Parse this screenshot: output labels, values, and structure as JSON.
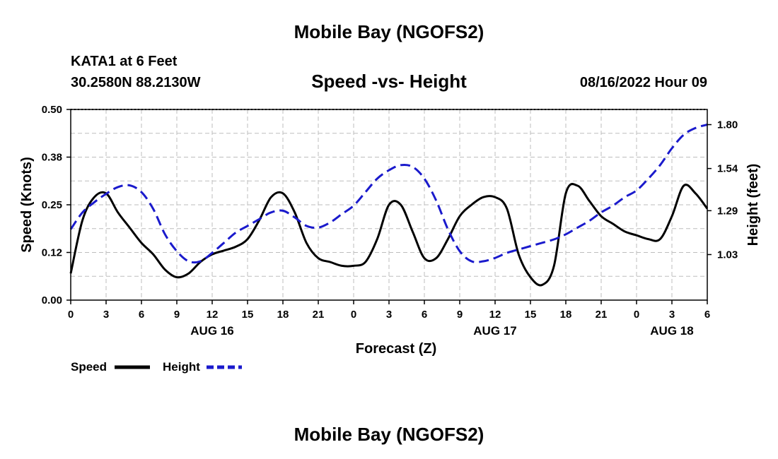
{
  "header": {
    "title": "Mobile Bay (NGOFS2)",
    "station": "KATA1 at 6 Feet",
    "coords": "30.2580N  88.2130W",
    "subtitle": "Speed -vs- Height",
    "datetime": "08/16/2022 Hour 09",
    "bottom_title": "Mobile Bay (NGOFS2)"
  },
  "chart_data": {
    "type": "line",
    "title": "Speed -vs- Height",
    "xlabel": "Forecast (Z)",
    "ylabel": "Speed (Knots)",
    "y2label": "Height (feet)",
    "x_hours_range": [
      0,
      54
    ],
    "x_tick_labels": [
      "0",
      "3",
      "6",
      "9",
      "12",
      "15",
      "18",
      "21",
      "0",
      "3",
      "6",
      "9",
      "12",
      "15",
      "18",
      "21",
      "0",
      "3",
      "6"
    ],
    "date_labels": [
      {
        "label": "AUG 16",
        "hour": 12
      },
      {
        "label": "AUG 17",
        "hour": 36
      },
      {
        "label": "AUG 18",
        "hour": 51
      }
    ],
    "ylim": [
      0,
      0.5
    ],
    "y_ticks": [
      "0.00",
      "0.12",
      "0.25",
      "0.38",
      "0.50"
    ],
    "y_tick_values": [
      0,
      0.125,
      0.25,
      0.375,
      0.5
    ],
    "y2lim": [
      0.76,
      1.89
    ],
    "y2_ticks": [
      "1.03",
      "1.29",
      "1.54",
      "1.80"
    ],
    "y2_tick_values": [
      1.03,
      1.29,
      1.54,
      1.8
    ],
    "grid": true,
    "legend": "bottom-left",
    "series": [
      {
        "name": "Speed",
        "axis": "left",
        "color": "#000000",
        "style": "solid",
        "x": [
          0,
          1,
          2,
          3,
          4,
          5,
          6,
          7,
          8,
          9,
          10,
          11,
          12,
          13,
          14,
          15,
          16,
          17,
          18,
          19,
          20,
          21,
          22,
          23,
          24,
          25,
          26,
          27,
          28,
          29,
          30,
          31,
          32,
          33,
          34,
          35,
          36,
          37,
          38,
          39,
          40,
          41,
          42,
          43,
          44,
          45,
          46,
          47,
          48,
          49,
          50,
          51,
          52,
          53,
          54
        ],
        "values": [
          0.07,
          0.21,
          0.27,
          0.28,
          0.23,
          0.19,
          0.15,
          0.12,
          0.08,
          0.06,
          0.07,
          0.1,
          0.12,
          0.13,
          0.14,
          0.16,
          0.21,
          0.27,
          0.28,
          0.23,
          0.15,
          0.11,
          0.1,
          0.09,
          0.09,
          0.1,
          0.16,
          0.25,
          0.25,
          0.18,
          0.11,
          0.11,
          0.16,
          0.22,
          0.25,
          0.27,
          0.27,
          0.24,
          0.12,
          0.06,
          0.04,
          0.09,
          0.28,
          0.3,
          0.26,
          0.22,
          0.2,
          0.18,
          0.17,
          0.16,
          0.16,
          0.22,
          0.3,
          0.28,
          0.24
        ]
      },
      {
        "name": "Height",
        "axis": "right",
        "color": "#1a1acc",
        "style": "dashed",
        "x": [
          0,
          1,
          2,
          3,
          4,
          5,
          6,
          7,
          8,
          9,
          10,
          11,
          12,
          13,
          14,
          15,
          16,
          17,
          18,
          19,
          20,
          21,
          22,
          23,
          24,
          25,
          26,
          27,
          28,
          29,
          30,
          31,
          32,
          33,
          34,
          35,
          36,
          37,
          38,
          39,
          40,
          41,
          42,
          43,
          44,
          45,
          46,
          47,
          48,
          49,
          50,
          51,
          52,
          53,
          54
        ],
        "values": [
          1.18,
          1.28,
          1.34,
          1.39,
          1.43,
          1.44,
          1.4,
          1.3,
          1.15,
          1.05,
          0.99,
          0.99,
          1.04,
          1.1,
          1.16,
          1.2,
          1.24,
          1.28,
          1.29,
          1.25,
          1.2,
          1.19,
          1.22,
          1.27,
          1.32,
          1.4,
          1.48,
          1.53,
          1.56,
          1.55,
          1.48,
          1.35,
          1.18,
          1.05,
          0.99,
          0.99,
          1.01,
          1.04,
          1.06,
          1.08,
          1.1,
          1.12,
          1.15,
          1.19,
          1.23,
          1.28,
          1.32,
          1.37,
          1.41,
          1.48,
          1.56,
          1.66,
          1.74,
          1.78,
          1.8
        ]
      }
    ]
  }
}
